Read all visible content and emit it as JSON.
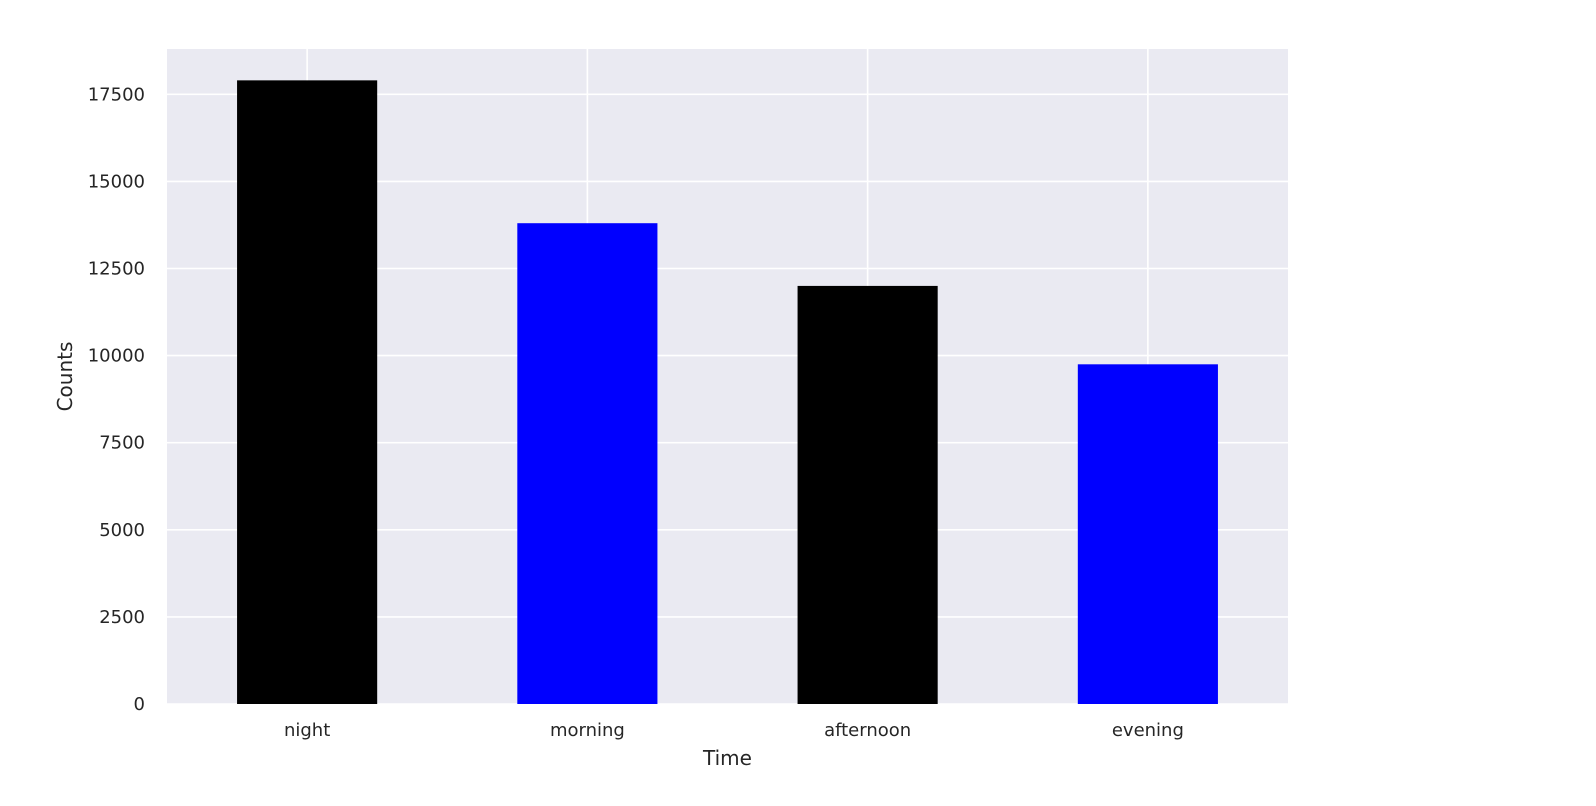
{
  "chart_data": {
    "type": "bar",
    "title": "",
    "xlabel": "Time",
    "ylabel": "Counts",
    "categories": [
      "night",
      "morning",
      "afternoon",
      "evening"
    ],
    "values": [
      17900,
      13800,
      12000,
      9750
    ],
    "bar_colors": [
      "#000000",
      "#0000ff",
      "#000000",
      "#0000ff"
    ],
    "ylim": [
      0,
      18800
    ],
    "yticks": [
      0,
      2500,
      5000,
      7500,
      10000,
      12500,
      15000,
      17500
    ],
    "ytick_labels": [
      "0",
      "2500",
      "5000",
      "7500",
      "10000",
      "12500",
      "15000",
      "17500"
    ],
    "grid": true,
    "legend": "none",
    "background_color": "#eaeaf2",
    "grid_color": "#ffffff"
  }
}
